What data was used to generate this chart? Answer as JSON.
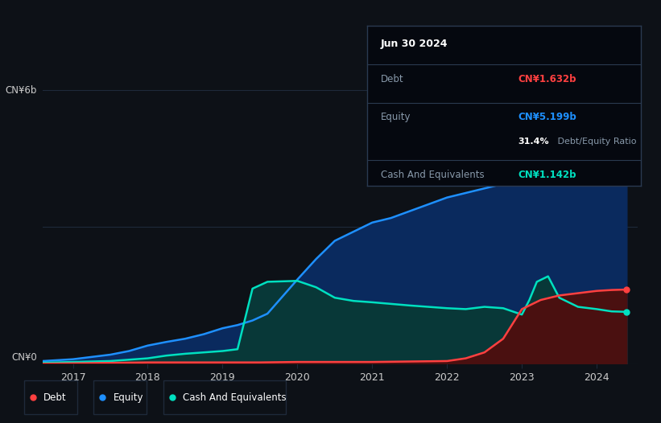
{
  "background_color": "#0d1117",
  "plot_bg_color": "#0d1117",
  "equity_line_color": "#1e90ff",
  "equity_fill_color": "#0a2a5e",
  "debt_line_color": "#ff4040",
  "debt_fill_color": "#4a1010",
  "cash_line_color": "#00e0c0",
  "cash_fill_color": "#083838",
  "grid_color": "#1e2a3a",
  "tick_color": "#cccccc",
  "label_color": "#cccccc",
  "legend_box_color": "#1e2a3a",
  "tooltip_bg": "#05080f",
  "tooltip_border": "#2a3a50",
  "tooltip_title": "Jun 30 2024",
  "tooltip_debt_val": "CN¥1.632b",
  "tooltip_equity_val": "CN¥5.199b",
  "tooltip_ratio": "31.4%",
  "tooltip_cash_val": "CN¥1.142b",
  "ylim": [
    0.0,
    6.5
  ],
  "ylabel_6": "CN¥6b",
  "ylabel_0": "CN¥0",
  "equity_x": [
    2016.5,
    2017.0,
    2017.25,
    2017.5,
    2017.75,
    2018.0,
    2018.25,
    2018.5,
    2018.75,
    2019.0,
    2019.2,
    2019.4,
    2019.6,
    2020.0,
    2020.25,
    2020.5,
    2020.75,
    2021.0,
    2021.25,
    2021.5,
    2021.75,
    2022.0,
    2022.25,
    2022.5,
    2022.75,
    2023.0,
    2023.25,
    2023.5,
    2023.75,
    2024.0,
    2024.2,
    2024.4
  ],
  "equity_y": [
    0.05,
    0.1,
    0.15,
    0.2,
    0.28,
    0.4,
    0.48,
    0.55,
    0.65,
    0.78,
    0.85,
    0.95,
    1.1,
    1.85,
    2.3,
    2.7,
    2.9,
    3.1,
    3.2,
    3.35,
    3.5,
    3.65,
    3.75,
    3.85,
    3.95,
    4.2,
    4.5,
    4.75,
    4.95,
    5.1,
    5.18,
    5.2
  ],
  "debt_x": [
    2016.5,
    2017.0,
    2017.5,
    2018.0,
    2018.5,
    2019.0,
    2019.5,
    2020.0,
    2020.5,
    2021.0,
    2021.5,
    2022.0,
    2022.25,
    2022.5,
    2022.75,
    2023.0,
    2023.25,
    2023.5,
    2023.75,
    2024.0,
    2024.2,
    2024.4
  ],
  "debt_y": [
    0.0,
    0.01,
    0.02,
    0.03,
    0.03,
    0.03,
    0.03,
    0.04,
    0.04,
    0.04,
    0.05,
    0.06,
    0.12,
    0.25,
    0.55,
    1.2,
    1.4,
    1.5,
    1.55,
    1.6,
    1.62,
    1.63
  ],
  "cash_x": [
    2016.5,
    2017.0,
    2017.5,
    2018.0,
    2018.25,
    2018.5,
    2018.75,
    2019.0,
    2019.2,
    2019.4,
    2019.6,
    2020.0,
    2020.25,
    2020.5,
    2020.75,
    2021.0,
    2021.5,
    2022.0,
    2022.25,
    2022.5,
    2022.75,
    2023.0,
    2023.1,
    2023.2,
    2023.35,
    2023.5,
    2023.75,
    2024.0,
    2024.2,
    2024.4
  ],
  "cash_y": [
    0.02,
    0.04,
    0.06,
    0.12,
    0.18,
    0.22,
    0.25,
    0.28,
    0.32,
    1.65,
    1.8,
    1.82,
    1.68,
    1.45,
    1.38,
    1.35,
    1.28,
    1.22,
    1.2,
    1.25,
    1.22,
    1.08,
    1.4,
    1.8,
    1.92,
    1.45,
    1.25,
    1.2,
    1.15,
    1.14
  ]
}
